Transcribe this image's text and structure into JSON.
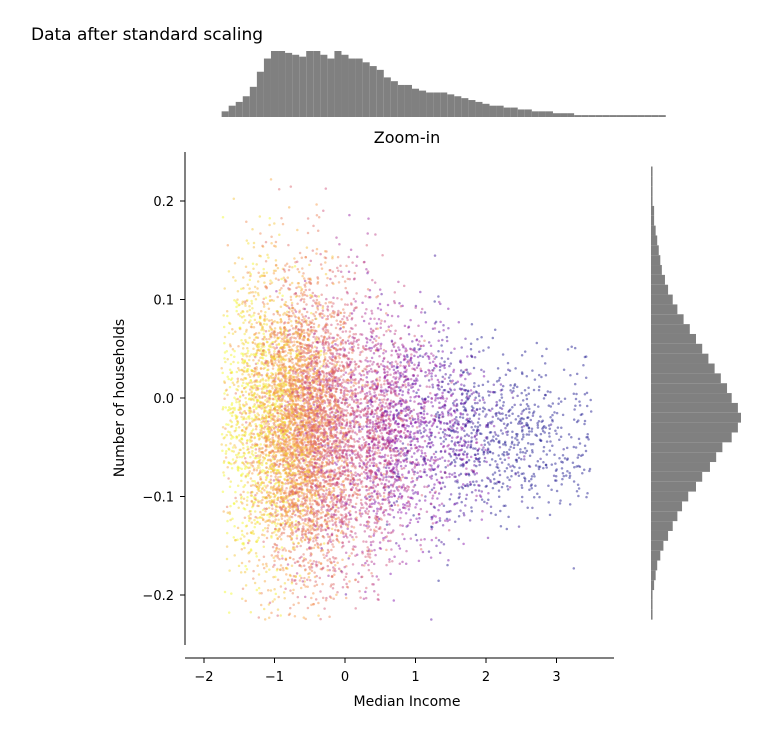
{
  "figure": {
    "title": "Data after standard scaling"
  },
  "chart_data": {
    "type": "scatter",
    "title": "Zoom-in",
    "xlabel": "Median Income",
    "ylabel": "Number of households",
    "xlim": [
      -2.25,
      3.6
    ],
    "ylim": [
      -0.25,
      0.25
    ],
    "x_ticks": [
      -2,
      -1,
      0,
      1,
      2,
      3
    ],
    "x_tick_labels": [
      "−2",
      "−1",
      "0",
      "1",
      "2",
      "3"
    ],
    "y_ticks": [
      -0.2,
      -0.1,
      0.0,
      0.1,
      0.2
    ],
    "y_tick_labels": [
      "−0.2",
      "−0.1",
      "0.0",
      "0.1",
      "0.2"
    ],
    "point_count_approx": 9000,
    "colormap": [
      "#0d0887",
      "#7e03a8",
      "#cc4778",
      "#f89540",
      "#f0f921"
    ],
    "point_opacity": 0.45,
    "grid": false,
    "marginal_histograms": {
      "color": "#808080",
      "x_histogram": {
        "bin_edges_start": -1.75,
        "bin_width": 0.1,
        "counts": [
          3,
          6,
          8,
          11,
          16,
          24,
          31,
          35,
          35,
          34,
          33,
          32,
          35,
          35,
          33,
          31,
          35,
          33,
          31,
          31,
          29,
          27,
          25,
          21,
          19,
          17,
          17,
          15,
          14,
          13,
          13,
          13,
          12,
          11,
          10,
          9,
          8,
          7,
          6,
          6,
          5,
          5,
          4,
          4,
          3,
          3,
          3,
          2,
          2,
          2,
          1,
          1,
          1,
          1,
          1,
          1,
          1,
          1,
          1,
          1,
          1,
          1,
          1
        ]
      },
      "y_histogram": {
        "bin_edges_start": -0.225,
        "bin_width": 0.01,
        "counts": [
          1,
          1,
          1,
          2,
          3,
          4,
          6,
          8,
          11,
          14,
          17,
          20,
          24,
          29,
          33,
          38,
          42,
          46,
          52,
          56,
          58,
          56,
          52,
          49,
          45,
          41,
          37,
          33,
          29,
          25,
          21,
          17,
          14,
          11,
          9,
          7,
          6,
          5,
          4,
          3,
          2,
          2,
          1,
          1,
          1,
          1
        ]
      }
    }
  }
}
